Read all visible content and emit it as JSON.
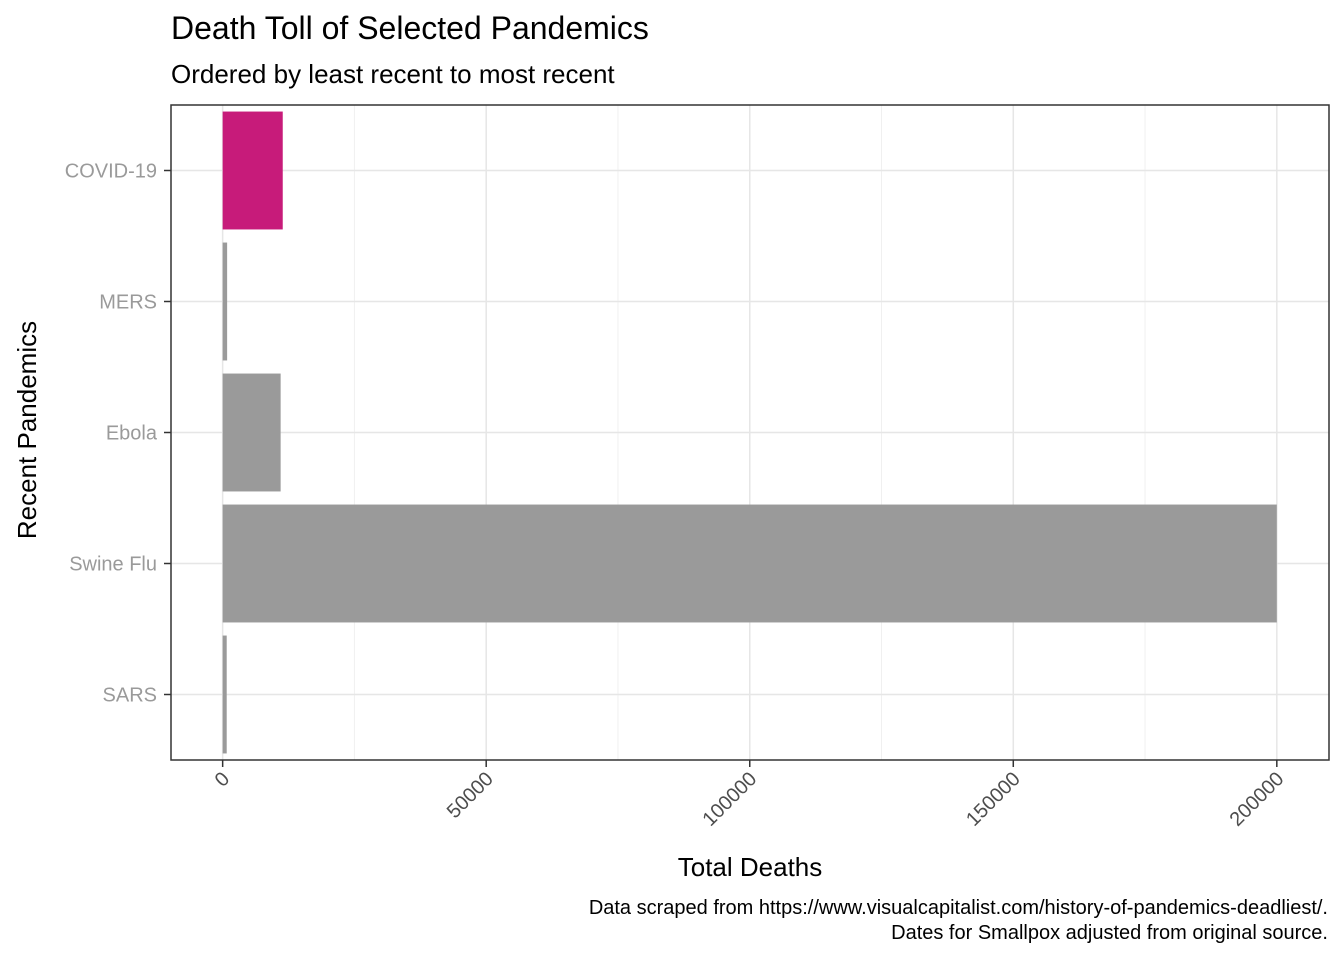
{
  "chart_data": {
    "type": "bar",
    "orientation": "horizontal",
    "title": "Death Toll of Selected Pandemics",
    "subtitle": "Ordered by least recent to most recent",
    "xlabel": "Total Deaths",
    "ylabel": "Recent Pandemics",
    "categories": [
      "SARS",
      "Swine Flu",
      "Ebola",
      "MERS",
      "COVID-19"
    ],
    "values": [
      770,
      200000,
      11000,
      850,
      11400
    ],
    "highlight_category": "COVID-19",
    "colors": {
      "default": "#9a9a9a",
      "highlight": "#c71b7a"
    },
    "xlim": [
      -9800,
      209900
    ],
    "x_ticks": [
      0,
      50000,
      100000,
      150000,
      200000
    ],
    "x_tick_labels": [
      "0",
      "50000",
      "100000",
      "150000",
      "200000"
    ],
    "x_tick_rotation": "45 degrees",
    "grid": true,
    "legend": "none",
    "caption": [
      "Data scraped from https://www.visualcapitalist.com/history-of-pandemics-deadliest/.",
      "Dates for Smallpox adjusted from original source."
    ]
  }
}
